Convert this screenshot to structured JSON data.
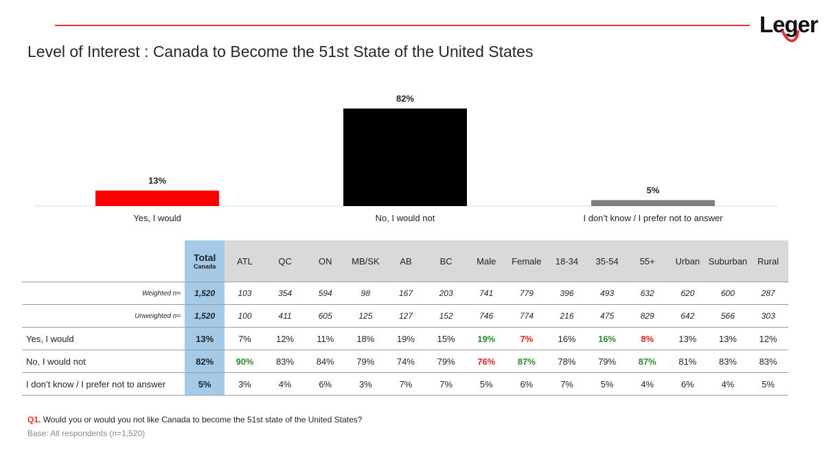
{
  "brand": {
    "logo_text": "Leger",
    "accent": "#e0322f"
  },
  "title": "Level of Interest : Canada to Become the 51st State of the United States",
  "chart_data": {
    "type": "bar",
    "categories": [
      "Yes, I would",
      "No, I would not",
      "I don’t know / I prefer not to answer"
    ],
    "values": [
      13,
      82,
      5
    ],
    "value_labels": [
      "13%",
      "82%",
      "5%"
    ],
    "colors": [
      "#ff0000",
      "#000000",
      "#7f7f7f"
    ],
    "ylim": [
      0,
      100
    ],
    "grid": false,
    "legend": "none"
  },
  "table": {
    "total_header": {
      "main": "Total",
      "sub": "Canada"
    },
    "columns": [
      "ATL",
      "QC",
      "ON",
      "MB/SK",
      "AB",
      "BC",
      "Male",
      "Female",
      "18-34",
      "35-54",
      "55+",
      "Urban",
      "Suburban",
      "Rural"
    ],
    "rows": [
      {
        "label": "Weighted n=",
        "kind": "n",
        "total": "1,520",
        "values": [
          "103",
          "354",
          "594",
          "98",
          "167",
          "203",
          "741",
          "779",
          "396",
          "493",
          "632",
          "620",
          "600",
          "287"
        ],
        "marks": [
          "",
          "",
          "",
          "",
          "",
          "",
          "",
          "",
          "",
          "",
          "",
          "",
          "",
          ""
        ]
      },
      {
        "label": "Unweighted n=",
        "kind": "n",
        "total": "1,520",
        "values": [
          "100",
          "411",
          "605",
          "125",
          "127",
          "152",
          "746",
          "774",
          "216",
          "475",
          "829",
          "642",
          "566",
          "303"
        ],
        "marks": [
          "",
          "",
          "",
          "",
          "",
          "",
          "",
          "",
          "",
          "",
          "",
          "",
          "",
          ""
        ]
      },
      {
        "label": "Yes, I would",
        "kind": "data",
        "total": "13%",
        "values": [
          "7%",
          "12%",
          "11%",
          "18%",
          "19%",
          "15%",
          "19%",
          "7%",
          "16%",
          "16%",
          "8%",
          "13%",
          "13%",
          "12%"
        ],
        "marks": [
          "",
          "",
          "",
          "",
          "",
          "",
          "hi",
          "lo",
          "",
          "hi",
          "lo",
          "",
          "",
          ""
        ]
      },
      {
        "label": "No, I would not",
        "kind": "data",
        "total": "82%",
        "values": [
          "90%",
          "83%",
          "84%",
          "79%",
          "74%",
          "79%",
          "76%",
          "87%",
          "78%",
          "79%",
          "87%",
          "81%",
          "83%",
          "83%"
        ],
        "marks": [
          "hi",
          "",
          "",
          "",
          "",
          "",
          "lo",
          "hi",
          "",
          "",
          "hi",
          "",
          "",
          ""
        ]
      },
      {
        "label": "I don’t know / I prefer not to answer",
        "kind": "data",
        "total": "5%",
        "values": [
          "3%",
          "4%",
          "6%",
          "3%",
          "7%",
          "7%",
          "5%",
          "6%",
          "7%",
          "5%",
          "4%",
          "6%",
          "4%",
          "5%"
        ],
        "marks": [
          "",
          "",
          "",
          "",
          "",
          "",
          "",
          "",
          "",
          "",
          "",
          "",
          "",
          ""
        ]
      }
    ],
    "colors": {
      "total_bg": "#a4cae7",
      "header_bg": "#d9d9d9",
      "higher": "#2e8b2e",
      "lower": "#e02020"
    }
  },
  "footnote": {
    "question_id": "Q1.",
    "question": "Would you or would you not like Canada to become the 51st state of the United States?"
  },
  "base": "Base: All respondents (n=1,520)"
}
